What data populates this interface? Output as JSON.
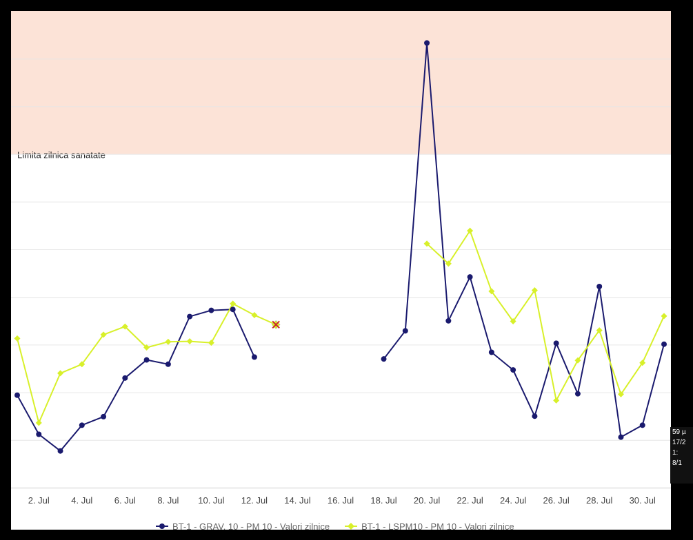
{
  "chart_data": {
    "type": "line",
    "x_start_date": "2023-07-01",
    "x_unit": "day",
    "xlim": [
      1,
      31
    ],
    "ylim": [
      0,
      100
    ],
    "x_tick_labels": [
      {
        "day": 2,
        "label": "2. Jul"
      },
      {
        "day": 4,
        "label": "4. Jul"
      },
      {
        "day": 6,
        "label": "6. Jul"
      },
      {
        "day": 8,
        "label": "8. Jul"
      },
      {
        "day": 10,
        "label": "10. Jul"
      },
      {
        "day": 12,
        "label": "12. Jul"
      },
      {
        "day": 14,
        "label": "14. Jul"
      },
      {
        "day": 16,
        "label": "16. Jul"
      },
      {
        "day": 18,
        "label": "18. Jul"
      },
      {
        "day": 20,
        "label": "20. Jul"
      },
      {
        "day": 22,
        "label": "22. Jul"
      },
      {
        "day": 24,
        "label": "24. Jul"
      },
      {
        "day": 26,
        "label": "26. Jul"
      },
      {
        "day": 28,
        "label": "28. Jul"
      },
      {
        "day": 30,
        "label": "30. Jul"
      }
    ],
    "y_gridlines": [
      0,
      10,
      20,
      30,
      40,
      50,
      60,
      70,
      80,
      90,
      100
    ],
    "plot_band": {
      "from": 70,
      "to": 100,
      "color": "#fce3d7",
      "label": "Limita zilnica sanatate"
    },
    "grid": true,
    "legend_position": "bottom",
    "series": [
      {
        "name": "BT-1 - GRAV. 10 - PM 10 - Valori zilnice",
        "color": "#1a1a6e",
        "marker": "circle",
        "points": [
          [
            1,
            19.4
          ],
          [
            2,
            11.2
          ],
          [
            3,
            7.7
          ],
          [
            4,
            13.1
          ],
          [
            5,
            14.9
          ],
          [
            6,
            23.0
          ],
          [
            7,
            26.8
          ],
          [
            8,
            25.9
          ],
          [
            9,
            35.9
          ],
          [
            10,
            37.2
          ],
          [
            11,
            37.4
          ],
          [
            12,
            27.4
          ],
          [
            18,
            27.0
          ],
          [
            19,
            32.9
          ],
          [
            20,
            93.3
          ],
          [
            21,
            35.0
          ],
          [
            22,
            44.2
          ],
          [
            23,
            28.4
          ],
          [
            24,
            24.7
          ],
          [
            25,
            15.0
          ],
          [
            26,
            30.3
          ],
          [
            27,
            19.7
          ],
          [
            28,
            42.2
          ],
          [
            29,
            10.6
          ],
          [
            30,
            13.1
          ],
          [
            31,
            30.1
          ]
        ]
      },
      {
        "name": "BT-1 - LSPM10 - PM 10 - Valori zilnice",
        "color": "#d8f02a",
        "marker": "diamond",
        "points": [
          [
            1,
            31.3
          ],
          [
            2,
            13.6
          ],
          [
            3,
            24.0
          ],
          [
            4,
            25.9
          ],
          [
            5,
            32.1
          ],
          [
            6,
            33.8
          ],
          [
            7,
            29.4
          ],
          [
            8,
            30.6
          ],
          [
            9,
            30.7
          ],
          [
            10,
            30.4
          ],
          [
            11,
            38.6
          ],
          [
            12,
            36.2
          ],
          [
            13,
            34.2
          ],
          [
            20,
            51.2
          ],
          [
            21,
            47.0
          ],
          [
            22,
            53.9
          ],
          [
            23,
            41.2
          ],
          [
            24,
            34.9
          ],
          [
            25,
            41.4
          ],
          [
            26,
            18.3
          ],
          [
            27,
            26.7
          ],
          [
            28,
            33.0
          ],
          [
            29,
            19.6
          ],
          [
            30,
            26.2
          ],
          [
            31,
            36.0
          ]
        ]
      }
    ],
    "hover_marker": {
      "series": 1,
      "day": 13,
      "color": "#cc2a2a"
    }
  },
  "tooltip": {
    "lines": [
      "59 µ",
      "17/2",
      "1:",
      "8/1"
    ]
  }
}
